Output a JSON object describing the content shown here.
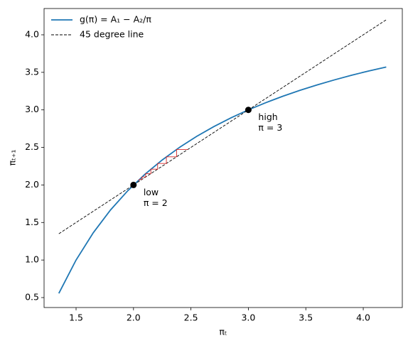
{
  "chart_data": {
    "type": "line",
    "x_label": "πₜ",
    "y_label": "πₜ₊₁",
    "xlim": [
      1.2215,
      4.34
    ],
    "ylim": [
      0.3675,
      4.35
    ],
    "xticks": [
      1.5,
      {
        "value": 2,
        "label": "2.0"
      },
      2.5,
      {
        "value": 3,
        "label": "3.0"
      },
      3.5,
      {
        "value": 4,
        "label": "4.0"
      }
    ],
    "yticks": [
      0.5,
      {
        "value": 1,
        "label": "1.0"
      },
      1.5,
      {
        "value": 2,
        "label": "2.0"
      },
      2.5,
      {
        "value": 3,
        "label": "3.0"
      },
      3.5,
      {
        "value": 4,
        "label": "4.0"
      }
    ],
    "legend": "upper left",
    "series": [
      {
        "name": "g(π) = A₁ − A₂/π",
        "color": "#1f77b4",
        "dash": "solid",
        "x": [
          1.35,
          1.5,
          1.65,
          1.8,
          1.95,
          2.1,
          2.25,
          2.4,
          2.55,
          2.7,
          2.85,
          3.0,
          3.15,
          3.3,
          3.45,
          3.6,
          3.75,
          3.9,
          4.05,
          4.2
        ],
        "y": [
          0.556,
          1.0,
          1.364,
          1.667,
          1.923,
          2.143,
          2.333,
          2.5,
          2.647,
          2.778,
          2.895,
          3.0,
          3.095,
          3.182,
          3.261,
          3.333,
          3.4,
          3.462,
          3.519,
          3.571
        ]
      },
      {
        "name": "45 degree line",
        "color": "#000000",
        "dash": "dashed",
        "x": [
          1.35,
          4.2
        ],
        "y": [
          1.35,
          4.2
        ]
      }
    ],
    "cobweb": {
      "color": "#d62728",
      "x": [
        2.05,
        2.05,
        2.073,
        2.073,
        2.106,
        2.106,
        2.151,
        2.151,
        2.21,
        2.21,
        2.286,
        2.286,
        2.375,
        2.375,
        2.473
      ],
      "y": [
        2.05,
        2.073,
        2.073,
        2.106,
        2.106,
        2.151,
        2.151,
        2.21,
        2.21,
        2.286,
        2.286,
        2.375,
        2.375,
        2.473,
        2.473
      ]
    },
    "points": {
      "color": "#000000",
      "x": [
        2,
        3
      ],
      "y": [
        2,
        3
      ]
    },
    "annotations": [
      [
        "low",
        "π = 2"
      ],
      [
        "high",
        "π = 3"
      ]
    ]
  }
}
